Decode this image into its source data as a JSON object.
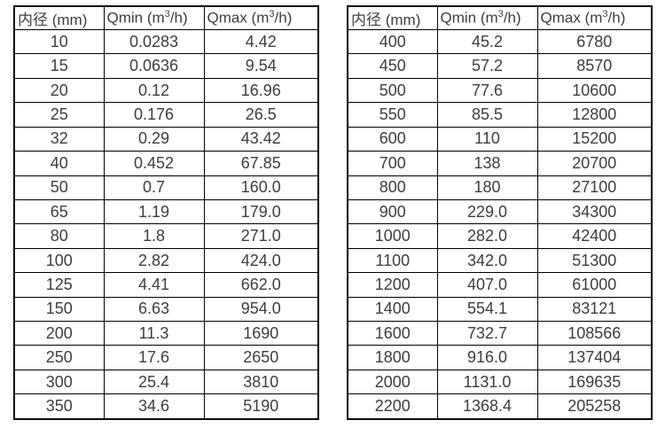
{
  "colors": {
    "background": "#ffffff",
    "border": "#000000",
    "text": "#3d3d3d"
  },
  "tables": [
    {
      "name": "flow-rate-table-small-diameters",
      "headers": [
        "内径 (mm)",
        "Qmin (m³/h)",
        "Qmax (m³/h)"
      ],
      "rows": [
        [
          "10",
          "0.0283",
          "4.42"
        ],
        [
          "15",
          "0.0636",
          "9.54"
        ],
        [
          "20",
          "0.12",
          "16.96"
        ],
        [
          "25",
          "0.176",
          "26.5"
        ],
        [
          "32",
          "0.29",
          "43.42"
        ],
        [
          "40",
          "0.452",
          "67.85"
        ],
        [
          "50",
          "0.7",
          "160.0"
        ],
        [
          "65",
          "1.19",
          "179.0"
        ],
        [
          "80",
          "1.8",
          "271.0"
        ],
        [
          "100",
          "2.82",
          "424.0"
        ],
        [
          "125",
          "4.41",
          "662.0"
        ],
        [
          "150",
          "6.63",
          "954.0"
        ],
        [
          "200",
          "11.3",
          "1690"
        ],
        [
          "250",
          "17.6",
          "2650"
        ],
        [
          "300",
          "25.4",
          "3810"
        ],
        [
          "350",
          "34.6",
          "5190"
        ]
      ]
    },
    {
      "name": "flow-rate-table-large-diameters",
      "headers": [
        "内径 (mm)",
        "Qmin (m³/h)",
        "Qmax (m³/h)"
      ],
      "rows": [
        [
          "400",
          "45.2",
          "6780"
        ],
        [
          "450",
          "57.2",
          "8570"
        ],
        [
          "500",
          "77.6",
          "10600"
        ],
        [
          "550",
          "85.5",
          "12800"
        ],
        [
          "600",
          "110",
          "15200"
        ],
        [
          "700",
          "138",
          "20700"
        ],
        [
          "800",
          "180",
          "27100"
        ],
        [
          "900",
          "229.0",
          "34300"
        ],
        [
          "1000",
          "282.0",
          "42400"
        ],
        [
          "1100",
          "342.0",
          "51300"
        ],
        [
          "1200",
          "407.0",
          "61000"
        ],
        [
          "1400",
          "554.1",
          "83121"
        ],
        [
          "1600",
          "732.7",
          "108566"
        ],
        [
          "1800",
          "916.0",
          "137404"
        ],
        [
          "2000",
          "1131.0",
          "169635"
        ],
        [
          "2200",
          "1368.4",
          "205258"
        ]
      ]
    }
  ]
}
